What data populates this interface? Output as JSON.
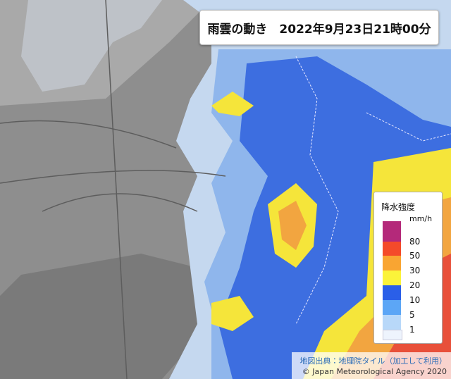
{
  "header": {
    "title": "雨雲の動き　2022年9月23日21時00分"
  },
  "legend": {
    "title": "降水強度",
    "unit": "mm/h",
    "levels": [
      80,
      50,
      30,
      20,
      10,
      5,
      1
    ]
  },
  "credits": {
    "map_source": "地図出典：地理院タイル（加工して利用）",
    "copyright": "© Japan Meteorological Agency 2020"
  }
}
